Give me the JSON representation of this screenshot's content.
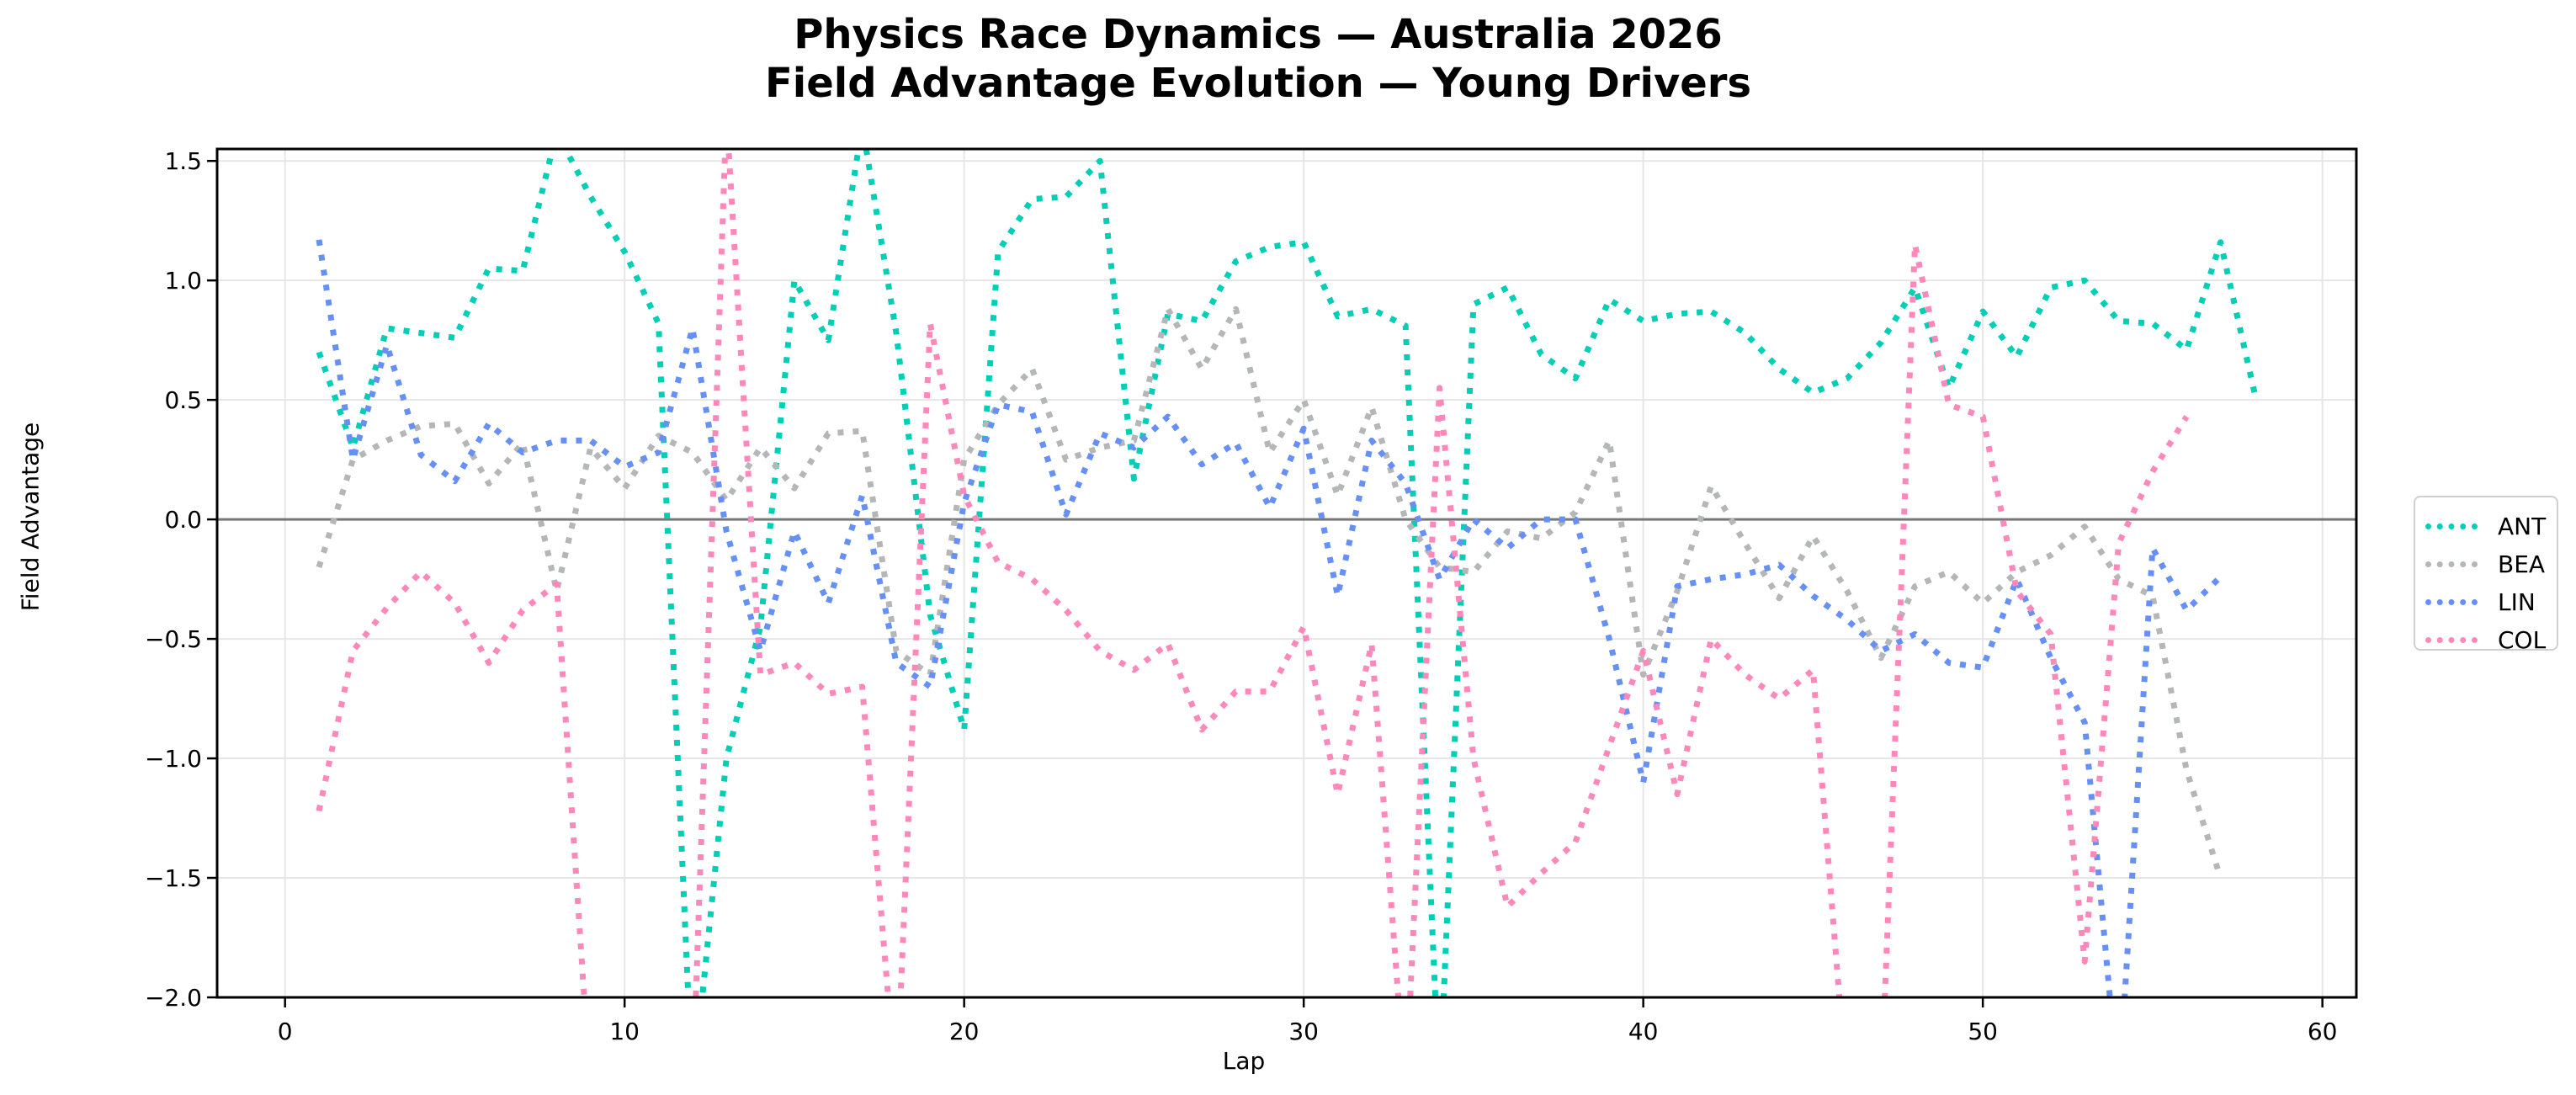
{
  "chart_data": {
    "type": "line",
    "title": "Physics Race Dynamics — Australia 2026",
    "subtitle": "Field Advantage Evolution — Young Drivers",
    "xlabel": "Lap",
    "ylabel": "Field Advantage",
    "xlim": [
      -2,
      61
    ],
    "ylim": [
      -2.0,
      1.55
    ],
    "xticks": [
      0,
      10,
      20,
      30,
      40,
      50,
      60
    ],
    "yticks": [
      -2.0,
      -1.5,
      -1.0,
      -0.5,
      0.0,
      0.5,
      1.0,
      1.5
    ],
    "ytick_labels": [
      "−2.0",
      "−1.5",
      "−1.0",
      "−0.5",
      "0.0",
      "0.5",
      "1.0",
      "1.5"
    ],
    "grid": true,
    "zero_line": true,
    "legend_position": "right-outside",
    "series": [
      {
        "name": "ANT",
        "color": "#00CFB5",
        "x": [
          1,
          2,
          3,
          4,
          5,
          6,
          7,
          8,
          9,
          10,
          11,
          12,
          13,
          14,
          15,
          16,
          17,
          18,
          19,
          20,
          21,
          22,
          23,
          24,
          25,
          26,
          27,
          28,
          29,
          30,
          31,
          32,
          33,
          34,
          35,
          36,
          37,
          38,
          39,
          40,
          41,
          42,
          43,
          44,
          45,
          46,
          47,
          48,
          49,
          50,
          51,
          52,
          53,
          54,
          55,
          56,
          57,
          58
        ],
        "values": [
          0.7,
          0.3,
          0.8,
          0.78,
          0.76,
          1.05,
          1.04,
          1.62,
          1.35,
          1.12,
          0.82,
          -2.4,
          -1.0,
          -0.45,
          1.0,
          0.75,
          1.65,
          0.78,
          -0.4,
          -0.88,
          1.12,
          1.34,
          1.35,
          1.5,
          0.17,
          0.86,
          0.83,
          1.08,
          1.14,
          1.16,
          0.85,
          0.88,
          0.81,
          -2.4,
          0.9,
          0.97,
          0.69,
          0.59,
          0.92,
          0.83,
          0.86,
          0.87,
          0.78,
          0.63,
          0.53,
          0.59,
          0.74,
          0.97,
          0.55,
          0.87,
          0.68,
          0.97,
          1.0,
          0.83,
          0.82,
          0.71,
          1.16,
          0.53
        ]
      },
      {
        "name": "BEA",
        "color": "#B4B6B8",
        "x": [
          1,
          2,
          3,
          4,
          5,
          6,
          7,
          8,
          9,
          10,
          11,
          12,
          13,
          14,
          15,
          16,
          17,
          18,
          19,
          20,
          21,
          22,
          23,
          24,
          25,
          26,
          27,
          28,
          29,
          30,
          31,
          32,
          33,
          34,
          35,
          36,
          37,
          38,
          39,
          40,
          41,
          42,
          43,
          44,
          45,
          46,
          47,
          48,
          49,
          50,
          51,
          52,
          53,
          54,
          55,
          56,
          57
        ],
        "values": [
          -0.2,
          0.25,
          0.33,
          0.39,
          0.4,
          0.15,
          0.32,
          -0.3,
          0.3,
          0.13,
          0.35,
          0.28,
          0.08,
          0.3,
          0.13,
          0.36,
          0.37,
          -0.55,
          -0.65,
          0.25,
          0.48,
          0.63,
          0.25,
          0.3,
          0.33,
          0.88,
          0.63,
          0.88,
          0.28,
          0.5,
          0.1,
          0.47,
          0.0,
          -0.2,
          -0.22,
          -0.05,
          -0.08,
          0.03,
          0.33,
          -0.65,
          -0.3,
          0.14,
          -0.1,
          -0.33,
          -0.07,
          -0.3,
          -0.58,
          -0.28,
          -0.22,
          -0.35,
          -0.22,
          -0.15,
          -0.03,
          -0.25,
          -0.32,
          -1.05,
          -1.5
        ]
      },
      {
        "name": "LIN",
        "color": "#6690F8",
        "x": [
          1,
          2,
          3,
          4,
          5,
          6,
          7,
          8,
          9,
          10,
          11,
          12,
          13,
          14,
          15,
          16,
          17,
          18,
          19,
          20,
          21,
          22,
          23,
          24,
          25,
          26,
          27,
          28,
          29,
          30,
          31,
          32,
          33,
          34,
          35,
          36,
          37,
          38,
          39,
          40,
          41,
          42,
          43,
          44,
          45,
          46,
          47,
          48,
          49,
          50,
          51,
          52,
          53,
          54,
          55,
          56,
          57
        ],
        "values": [
          1.17,
          0.25,
          0.73,
          0.27,
          0.16,
          0.4,
          0.28,
          0.33,
          0.33,
          0.22,
          0.28,
          0.8,
          -0.05,
          -0.55,
          -0.05,
          -0.35,
          0.1,
          -0.6,
          -0.7,
          0.07,
          0.48,
          0.45,
          0.02,
          0.36,
          0.3,
          0.43,
          0.23,
          0.32,
          0.05,
          0.38,
          -0.32,
          0.33,
          0.15,
          -0.25,
          0.0,
          -0.12,
          0.0,
          0.0,
          -0.5,
          -1.1,
          -0.28,
          -0.25,
          -0.23,
          -0.19,
          -0.32,
          -0.42,
          -0.55,
          -0.48,
          -0.6,
          -0.62,
          -0.25,
          -0.58,
          -0.85,
          -2.4,
          -0.12,
          -0.38,
          -0.24
        ]
      },
      {
        "name": "COL",
        "color": "#FF88BB",
        "x": [
          1,
          2,
          3,
          4,
          5,
          6,
          7,
          8,
          9,
          10,
          11,
          12,
          13,
          14,
          15,
          16,
          17,
          18,
          19,
          20,
          21,
          22,
          23,
          24,
          25,
          26,
          27,
          28,
          29,
          30,
          31,
          32,
          33,
          34,
          35,
          36,
          37,
          38,
          39,
          40,
          41,
          42,
          43,
          44,
          45,
          46,
          47,
          48,
          49,
          50,
          51,
          52,
          53,
          54,
          55,
          56
        ],
        "values": [
          -1.22,
          -0.55,
          -0.37,
          -0.22,
          -0.35,
          -0.6,
          -0.38,
          -0.27,
          -2.4,
          -2.4,
          -2.4,
          -2.4,
          1.7,
          -0.65,
          -0.6,
          -0.73,
          -0.7,
          -2.4,
          0.82,
          0.1,
          -0.18,
          -0.25,
          -0.38,
          -0.55,
          -0.63,
          -0.52,
          -0.88,
          -0.72,
          -0.72,
          -0.45,
          -1.15,
          -0.52,
          -2.4,
          0.55,
          -1.0,
          -1.62,
          -1.48,
          -1.35,
          -0.95,
          -0.55,
          -1.15,
          -0.5,
          -0.65,
          -0.75,
          -0.63,
          -2.4,
          -2.4,
          1.15,
          0.48,
          0.43,
          -0.3,
          -0.48,
          -1.85,
          -0.1,
          0.2,
          0.43
        ]
      }
    ]
  }
}
